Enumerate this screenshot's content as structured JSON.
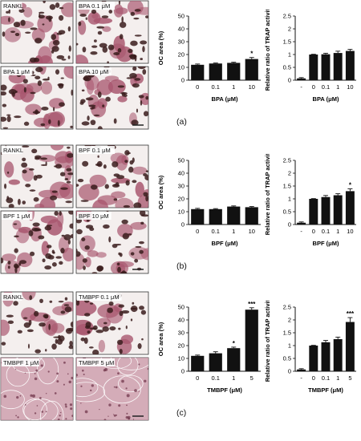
{
  "rows": [
    {
      "letter": "(a)",
      "micro_labels": [
        "RANKL",
        "BPA 0.1 μM",
        "BPA 1 μM",
        "BPA 10 μM"
      ],
      "tissue": {
        "light": false
      },
      "oc_chart": {
        "type": "bar",
        "categories": [
          "0",
          "0.1",
          "1",
          "10"
        ],
        "values": [
          12,
          13,
          13.5,
          16.5
        ],
        "errors": [
          0.6,
          0.4,
          0.5,
          1.2
        ],
        "annotations": [
          "",
          "",
          "",
          "*"
        ],
        "ylabel": "OC area (%)",
        "xlabel": "BPA (μM)",
        "ylim": [
          0,
          50
        ],
        "yticks": [
          0,
          10,
          20,
          30,
          40,
          50
        ]
      },
      "trap_chart": {
        "type": "bar",
        "categories": [
          "-",
          "0",
          "0.1",
          "1",
          "10"
        ],
        "values": [
          0.07,
          1.0,
          1.01,
          1.06,
          1.14
        ],
        "errors": [
          0.03,
          0.01,
          0.04,
          0.07,
          0.06
        ],
        "annotations": [
          "",
          "",
          "",
          "",
          ""
        ],
        "ylabel": "Relative ratio of TRAP activity",
        "xlabel": "BPA (μM)",
        "ylim": [
          0,
          2.5
        ],
        "yticks": [
          0,
          0.5,
          1,
          1.5,
          2,
          2.5
        ]
      }
    },
    {
      "letter": "(b)",
      "micro_labels": [
        "RANKL",
        "BPF 0.1 μM",
        "BPF 1 μM",
        "BPF 10 μM"
      ],
      "tissue": {
        "light": false
      },
      "oc_chart": {
        "type": "bar",
        "categories": [
          "0",
          "0.1",
          "1",
          "10"
        ],
        "values": [
          12,
          12,
          14,
          13.5
        ],
        "errors": [
          0.6,
          0.4,
          0.5,
          0.5
        ],
        "annotations": [
          "",
          "",
          "",
          ""
        ],
        "ylabel": "OC area (%)",
        "xlabel": "BPF (μM)",
        "ylim": [
          0,
          50
        ],
        "yticks": [
          0,
          10,
          20,
          30,
          40,
          50
        ]
      },
      "trap_chart": {
        "type": "bar",
        "categories": [
          "-",
          "0",
          "0.1",
          "1",
          "10"
        ],
        "values": [
          0.07,
          1.0,
          1.07,
          1.14,
          1.3
        ],
        "errors": [
          0.03,
          0.01,
          0.06,
          0.06,
          0.09
        ],
        "annotations": [
          "",
          "",
          "",
          "",
          "*"
        ],
        "ylabel": "Relative ratio of TRAP activity",
        "xlabel": "BPF (μM)",
        "ylim": [
          0,
          2.5
        ],
        "yticks": [
          0,
          0.5,
          1,
          1.5,
          2,
          2.5
        ]
      }
    },
    {
      "letter": "(c)",
      "micro_labels": [
        "RANKL",
        "TMBPF 0.1 μM",
        "TMBPF 1 μM",
        "TMBPF 5 μM"
      ],
      "tissue": {
        "light": true
      },
      "oc_chart": {
        "type": "bar",
        "categories": [
          "0",
          "0.1",
          "1",
          "5"
        ],
        "values": [
          12,
          14,
          18,
          48
        ],
        "errors": [
          0.6,
          1.2,
          0.8,
          1.5
        ],
        "annotations": [
          "",
          "",
          "*",
          "***"
        ],
        "ylabel": "OC area (%)",
        "xlabel": "TMBPF (μM)",
        "ylim": [
          0,
          50
        ],
        "yticks": [
          0,
          10,
          20,
          30,
          40,
          50
        ]
      },
      "trap_chart": {
        "type": "bar",
        "categories": [
          "-",
          "0",
          "0.1",
          "1",
          "5"
        ],
        "values": [
          0.07,
          1.0,
          1.13,
          1.25,
          1.92
        ],
        "errors": [
          0.03,
          0.01,
          0.07,
          0.08,
          0.17
        ],
        "annotations": [
          "",
          "",
          "",
          "",
          "***"
        ],
        "ylabel": "Relative ratio of TRAP activity",
        "xlabel": "TMBPF (μM)",
        "ylim": [
          0,
          2.5
        ],
        "yticks": [
          0,
          0.5,
          1,
          1.5,
          2,
          2.5
        ]
      }
    }
  ],
  "colors": {
    "bar": "#111111",
    "label_bg": "#ffffff",
    "stain_dark": "#3a1c1c",
    "stain_pink": "#a8566e",
    "tissue_bg": "#f4efee"
  }
}
